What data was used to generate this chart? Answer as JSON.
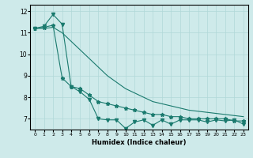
{
  "xlabel": "Humidex (Indice chaleur)",
  "xlim": [
    -0.5,
    23.5
  ],
  "ylim": [
    6.5,
    12.3
  ],
  "yticks": [
    7,
    8,
    9,
    10,
    11,
    12
  ],
  "xticks": [
    0,
    1,
    2,
    3,
    4,
    5,
    6,
    7,
    8,
    9,
    10,
    11,
    12,
    13,
    14,
    15,
    16,
    17,
    18,
    19,
    20,
    21,
    22,
    23
  ],
  "bg_color": "#ceeaea",
  "line_color": "#1a7a6e",
  "series": [
    {
      "y": [
        11.2,
        11.3,
        11.85,
        11.4,
        8.5,
        8.25,
        7.9,
        7.0,
        6.95,
        6.95,
        6.55,
        6.85,
        6.95,
        6.7,
        6.95,
        6.75,
        6.95,
        6.95,
        6.95,
        6.85,
        6.95,
        6.9,
        6.95,
        6.75
      ],
      "marker": "v",
      "markersize": 3,
      "linestyle": "-"
    },
    {
      "y": [
        11.2,
        11.25,
        11.35,
        8.9,
        8.5,
        8.4,
        8.1,
        7.8,
        7.7,
        7.6,
        7.5,
        7.4,
        7.3,
        7.2,
        7.2,
        7.1,
        7.1,
        7.0,
        7.0,
        7.0,
        7.0,
        7.0,
        6.9,
        6.9
      ],
      "marker": "*",
      "markersize": 3.5,
      "linestyle": "-"
    },
    {
      "y": [
        11.2,
        11.2,
        11.25,
        11.0,
        10.6,
        10.2,
        9.8,
        9.4,
        9.0,
        8.7,
        8.4,
        8.2,
        8.0,
        7.8,
        7.7,
        7.6,
        7.5,
        7.4,
        7.35,
        7.3,
        7.25,
        7.2,
        7.15,
        7.1
      ],
      "marker": "None",
      "markersize": 0,
      "linestyle": "-"
    }
  ]
}
